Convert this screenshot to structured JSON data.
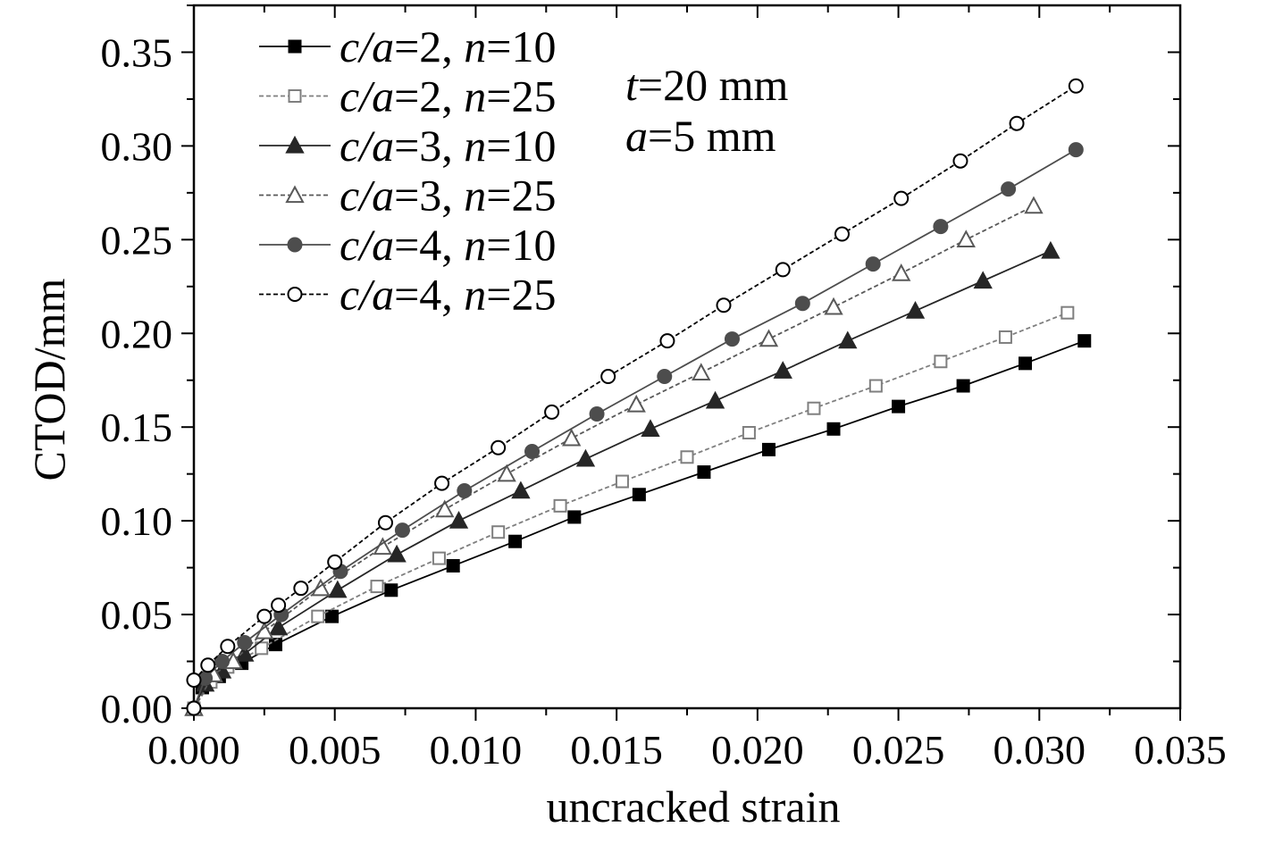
{
  "chart_data": {
    "type": "line",
    "xlabel": "uncracked strain",
    "ylabel": "CTOD/mm",
    "xlim": [
      0.0,
      0.035
    ],
    "ylim": [
      0.0,
      0.375
    ],
    "xticks": [
      0.0,
      0.005,
      0.01,
      0.015,
      0.02,
      0.025,
      0.03,
      0.035
    ],
    "xtick_labels": [
      "0.000",
      "0.005",
      "0.010",
      "0.015",
      "0.020",
      "0.025",
      "0.030",
      "0.035"
    ],
    "yticks": [
      0.0,
      0.05,
      0.1,
      0.15,
      0.2,
      0.25,
      0.3,
      0.35
    ],
    "ytick_labels": [
      "0.00",
      "0.05",
      "0.10",
      "0.15",
      "0.20",
      "0.25",
      "0.30",
      "0.35"
    ],
    "grid": false,
    "legend_position": "top-left",
    "annotations": [
      {
        "italic": "t",
        "rest": "=20 mm"
      },
      {
        "italic": "a",
        "rest": "=5 mm"
      }
    ],
    "series": [
      {
        "legend": {
          "ca": "=2, ",
          "n": "=10"
        },
        "color": "#000000",
        "dashed": false,
        "marker": "square",
        "filled": true,
        "x": [
          0.0,
          0.0003,
          0.0009,
          0.0017,
          0.0029,
          0.0049,
          0.007,
          0.0092,
          0.0114,
          0.0135,
          0.0158,
          0.0181,
          0.0204,
          0.0227,
          0.025,
          0.0273,
          0.0295,
          0.0316
        ],
        "y": [
          0.0,
          0.011,
          0.017,
          0.024,
          0.034,
          0.049,
          0.063,
          0.076,
          0.089,
          0.102,
          0.114,
          0.126,
          0.138,
          0.149,
          0.161,
          0.172,
          0.184,
          0.196
        ]
      },
      {
        "legend": {
          "ca": "=2, ",
          "n": "=25"
        },
        "color": "#7f7f7f",
        "dashed": true,
        "marker": "square",
        "filled": false,
        "x": [
          0.0,
          0.0006,
          0.0012,
          0.0024,
          0.0044,
          0.0065,
          0.0087,
          0.0108,
          0.013,
          0.0152,
          0.0175,
          0.0197,
          0.022,
          0.0242,
          0.0265,
          0.0288,
          0.031
        ],
        "y": [
          0.0,
          0.014,
          0.022,
          0.032,
          0.049,
          0.065,
          0.08,
          0.094,
          0.108,
          0.121,
          0.134,
          0.147,
          0.16,
          0.172,
          0.185,
          0.198,
          0.211
        ]
      },
      {
        "legend": {
          "ca": "=3, ",
          "n": "=10"
        },
        "color": "#262626",
        "dashed": false,
        "marker": "triangle",
        "filled": true,
        "x": [
          0.0,
          0.0004,
          0.001,
          0.0018,
          0.003,
          0.0051,
          0.0072,
          0.0094,
          0.0116,
          0.0139,
          0.0162,
          0.0185,
          0.0209,
          0.0232,
          0.0256,
          0.028,
          0.0304
        ],
        "y": [
          0.0,
          0.013,
          0.02,
          0.029,
          0.043,
          0.063,
          0.082,
          0.1,
          0.116,
          0.133,
          0.149,
          0.164,
          0.18,
          0.196,
          0.212,
          0.228,
          0.244
        ]
      },
      {
        "legend": {
          "ca": "=3, ",
          "n": "=25"
        },
        "color": "#595959",
        "dashed": true,
        "marker": "triangle",
        "filled": false,
        "x": [
          0.0,
          0.0007,
          0.0014,
          0.0025,
          0.0045,
          0.0067,
          0.0089,
          0.0111,
          0.0134,
          0.0157,
          0.018,
          0.0204,
          0.0227,
          0.0251,
          0.0274,
          0.0298
        ],
        "y": [
          0.0,
          0.018,
          0.025,
          0.041,
          0.064,
          0.086,
          0.106,
          0.125,
          0.144,
          0.162,
          0.179,
          0.197,
          0.214,
          0.232,
          0.25,
          0.268
        ]
      },
      {
        "legend": {
          "ca": "=4, ",
          "n": "=10"
        },
        "color": "#4d4d4d",
        "dashed": false,
        "marker": "circle",
        "filled": true,
        "x": [
          0.0,
          0.0004,
          0.001,
          0.0018,
          0.0031,
          0.0052,
          0.0074,
          0.0096,
          0.012,
          0.0143,
          0.0167,
          0.0191,
          0.0216,
          0.0241,
          0.0265,
          0.0289,
          0.0313
        ],
        "y": [
          0.0,
          0.016,
          0.025,
          0.035,
          0.05,
          0.073,
          0.095,
          0.116,
          0.137,
          0.157,
          0.177,
          0.197,
          0.216,
          0.237,
          0.257,
          0.277,
          0.298
        ]
      },
      {
        "legend": {
          "ca": "=4, ",
          "n": "=25"
        },
        "color": "#000000",
        "dashed": true,
        "marker": "circle",
        "filled": false,
        "x": [
          0.0,
          0.0,
          0.0005,
          0.0012,
          0.0025,
          0.003,
          0.0038,
          0.005,
          0.0068,
          0.0088,
          0.0108,
          0.0127,
          0.0147,
          0.0168,
          0.0188,
          0.0209,
          0.023,
          0.0251,
          0.0272,
          0.0292,
          0.0313
        ],
        "y": [
          0.0,
          0.015,
          0.023,
          0.033,
          0.049,
          0.055,
          0.064,
          0.078,
          0.099,
          0.12,
          0.139,
          0.158,
          0.177,
          0.196,
          0.215,
          0.234,
          0.253,
          0.272,
          0.292,
          0.312,
          0.332
        ]
      }
    ]
  }
}
